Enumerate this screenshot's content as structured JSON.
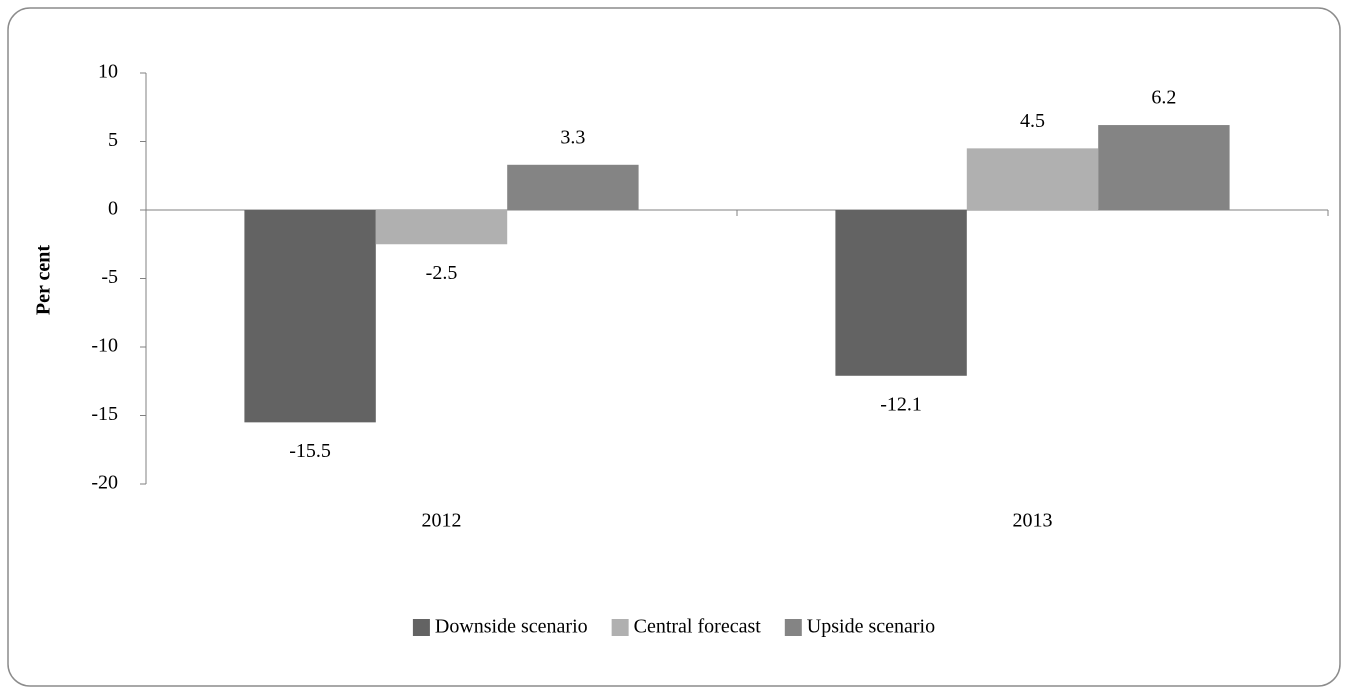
{
  "chart_data": {
    "type": "bar",
    "categories": [
      "2012",
      "2013"
    ],
    "series": [
      {
        "name": "Downside scenario",
        "color": "#636363",
        "values": [
          -15.5,
          -12.1
        ]
      },
      {
        "name": "Central forecast",
        "color": "#b0b0b0",
        "values": [
          -2.5,
          4.5
        ]
      },
      {
        "name": "Upside scenario",
        "color": "#848484",
        "values": [
          3.3,
          6.2
        ]
      }
    ],
    "y_label": "Per cent",
    "ylim": [
      -20,
      10
    ],
    "yticks": [
      10,
      5,
      0,
      -5,
      -10,
      -15,
      -20
    ],
    "grid": false,
    "legend": "bottom"
  }
}
